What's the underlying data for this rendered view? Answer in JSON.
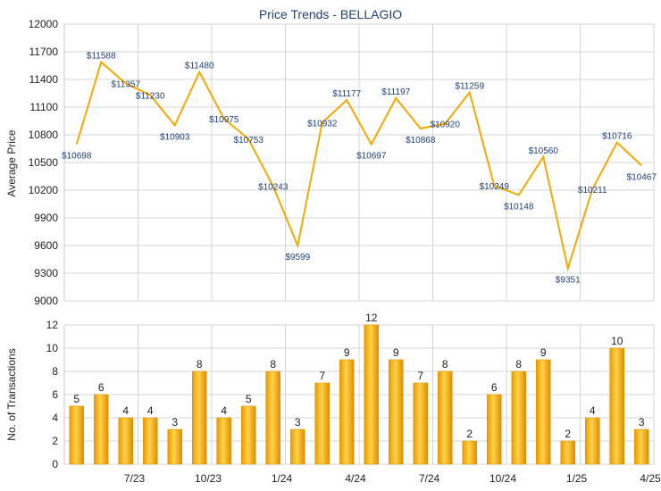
{
  "chart_data": [
    {
      "type": "line",
      "title": "Price Trends - BELLAGIO",
      "ylabel": "Average Price",
      "ylim": [
        9000,
        12000
      ],
      "yticks": [
        9000,
        9300,
        9600,
        9900,
        10200,
        10500,
        10800,
        11100,
        11400,
        11700,
        12000
      ],
      "grid": true,
      "color": "#f5a800",
      "series": [
        {
          "values": [
            10698,
            11588,
            11357,
            11230,
            10903,
            11480,
            10975,
            10753,
            10243,
            9599,
            10932,
            11177,
            10697,
            11197,
            10868,
            10920,
            11259,
            10249,
            10148,
            10560,
            9351,
            10211,
            10716,
            10467
          ]
        }
      ],
      "labels": [
        "$10698",
        "$11588",
        "$11357",
        "$11230",
        "$10903",
        "$11480",
        "$10975",
        "$10753",
        "$10243",
        "$9599",
        "$10932",
        "$11177",
        "$10697",
        "$11197",
        "$10868",
        "$10920",
        "$11259",
        "$10249",
        "$10148",
        "$10560",
        "$9351",
        "$10211",
        "$10716",
        "$10467"
      ]
    },
    {
      "type": "bar",
      "ylabel": "No. of Transactions",
      "ylim": [
        0,
        12
      ],
      "yticks": [
        0,
        2,
        4,
        6,
        8,
        10,
        12
      ],
      "grid": true,
      "color": "#f5a800",
      "values": [
        5,
        6,
        4,
        4,
        3,
        8,
        4,
        5,
        8,
        3,
        7,
        9,
        12,
        9,
        7,
        8,
        2,
        6,
        8,
        9,
        2,
        4,
        10,
        3
      ],
      "x_tick_labels": [
        "7/23",
        "10/23",
        "1/24",
        "4/24",
        "7/24",
        "10/24",
        "1/25",
        "4/25"
      ]
    }
  ]
}
